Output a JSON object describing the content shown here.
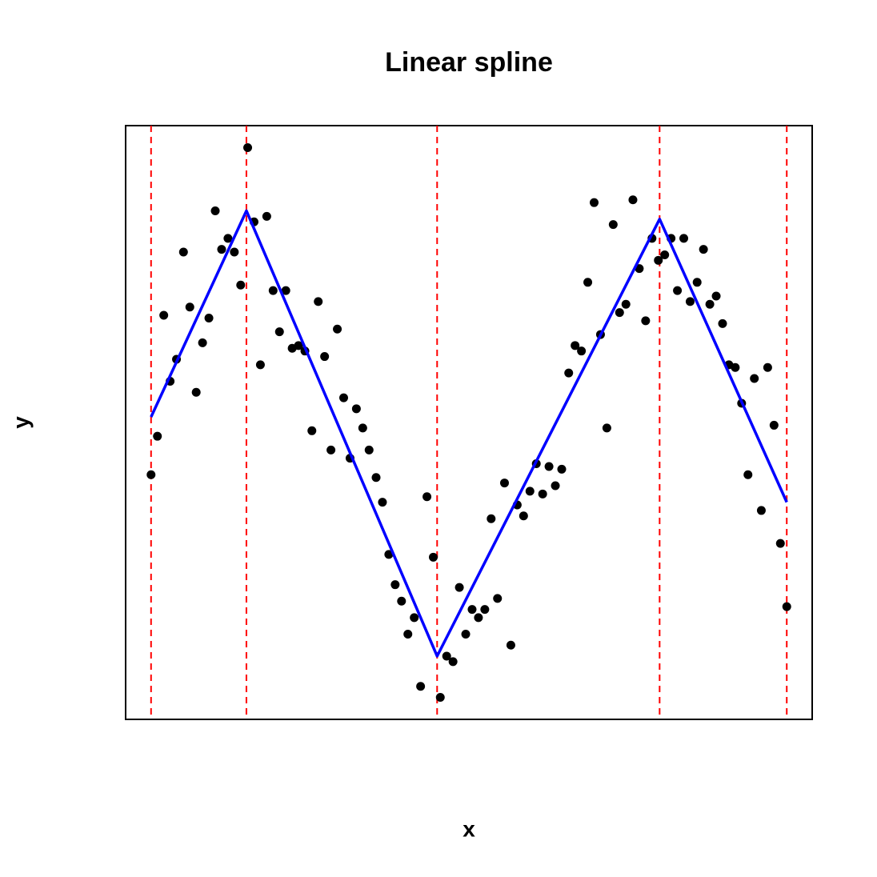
{
  "chart_data": {
    "type": "scatter",
    "title": "Linear spline",
    "xlabel": "x",
    "ylabel": "y",
    "xlim": [
      -0.04,
      1.04
    ],
    "ylim": [
      -1.08,
      1.08
    ],
    "series": [
      {
        "type": "scatter",
        "color": "#000000",
        "x": [
          0,
          0.01,
          0.02,
          0.03,
          0.04,
          0.051,
          0.061,
          0.071,
          0.081,
          0.091,
          0.101,
          0.111,
          0.121,
          0.131,
          0.141,
          0.152,
          0.162,
          0.172,
          0.182,
          0.192,
          0.202,
          0.212,
          0.222,
          0.232,
          0.242,
          0.253,
          0.263,
          0.273,
          0.283,
          0.293,
          0.303,
          0.313,
          0.323,
          0.333,
          0.343,
          0.354,
          0.364,
          0.374,
          0.384,
          0.394,
          0.404,
          0.414,
          0.424,
          0.434,
          0.444,
          0.455,
          0.465,
          0.475,
          0.485,
          0.495,
          0.505,
          0.515,
          0.525,
          0.535,
          0.545,
          0.556,
          0.566,
          0.576,
          0.586,
          0.596,
          0.606,
          0.616,
          0.626,
          0.636,
          0.646,
          0.657,
          0.667,
          0.677,
          0.687,
          0.697,
          0.707,
          0.717,
          0.727,
          0.737,
          0.747,
          0.758,
          0.768,
          0.778,
          0.788,
          0.798,
          0.808,
          0.818,
          0.828,
          0.838,
          0.848,
          0.859,
          0.869,
          0.879,
          0.889,
          0.899,
          0.909,
          0.919,
          0.929,
          0.939,
          0.949,
          0.96,
          0.97,
          0.98,
          0.99,
          1.0
        ],
        "values": [
          -0.19,
          -0.05,
          0.39,
          0.15,
          0.23,
          0.62,
          0.42,
          0.11,
          0.29,
          0.38,
          0.77,
          0.63,
          0.67,
          0.62,
          0.5,
          1.0,
          0.73,
          0.21,
          0.75,
          0.48,
          0.33,
          0.48,
          0.27,
          0.28,
          0.26,
          -0.03,
          0.44,
          0.24,
          -0.1,
          0.34,
          0.09,
          -0.13,
          0.05,
          -0.02,
          -0.1,
          -0.2,
          -0.29,
          -0.48,
          -0.59,
          -0.65,
          -0.77,
          -0.71,
          -0.96,
          -0.27,
          -0.49,
          -1.0,
          -0.85,
          -0.87,
          -0.6,
          -0.77,
          -0.68,
          -0.71,
          -0.68,
          -0.35,
          -0.64,
          -0.22,
          -0.81,
          -0.3,
          -0.34,
          -0.25,
          -0.15,
          -0.26,
          -0.16,
          -0.23,
          -0.17,
          0.18,
          0.28,
          0.26,
          0.51,
          0.8,
          0.32,
          -0.02,
          0.72,
          0.4,
          0.43,
          0.81,
          0.56,
          0.37,
          0.67,
          0.59,
          0.61,
          0.67,
          0.48,
          0.67,
          0.44,
          0.51,
          0.63,
          0.43,
          0.46,
          0.36,
          0.21,
          0.2,
          0.07,
          -0.19,
          0.16,
          -0.32,
          0.2,
          -0.01,
          -0.44,
          -0.67
        ]
      },
      {
        "type": "line",
        "color": "#0000ff",
        "x": [
          0,
          0.15,
          0.45,
          0.8,
          1
        ],
        "values": [
          0.02,
          0.77,
          -0.85,
          0.74,
          -0.29
        ]
      }
    ],
    "knots": {
      "color": "#ff0000",
      "x": [
        0,
        0.15,
        0.45,
        0.8,
        1
      ]
    }
  }
}
